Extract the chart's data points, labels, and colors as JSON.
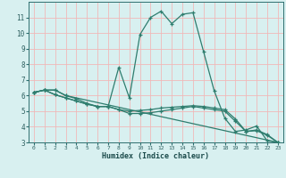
{
  "xlabel": "Humidex (Indice chaleur)",
  "bg_color": "#d8f0f0",
  "grid_color": "#f0b8b8",
  "line_color": "#2e7d6e",
  "xlim": [
    -0.5,
    23.5
  ],
  "ylim": [
    3,
    12
  ],
  "xticks": [
    0,
    1,
    2,
    3,
    4,
    5,
    6,
    7,
    8,
    9,
    10,
    11,
    12,
    13,
    14,
    15,
    16,
    17,
    18,
    19,
    20,
    21,
    22,
    23
  ],
  "yticks": [
    3,
    4,
    5,
    6,
    7,
    8,
    9,
    10,
    11
  ],
  "series": [
    {
      "x": [
        0,
        1,
        2,
        3,
        4,
        5,
        6,
        7,
        8,
        9,
        10,
        11,
        12,
        13,
        14,
        15,
        16,
        17,
        18,
        19,
        20,
        21,
        22,
        23
      ],
      "y": [
        6.2,
        6.35,
        6.35,
        6.0,
        5.8,
        5.5,
        5.3,
        5.3,
        7.8,
        5.85,
        9.9,
        11.0,
        11.4,
        10.6,
        11.2,
        11.3,
        8.8,
        6.3,
        4.55,
        3.7,
        3.8,
        4.05,
        3.1,
        3.0
      ]
    },
    {
      "x": [
        0,
        1,
        2,
        3,
        4,
        5,
        6,
        7,
        8,
        9,
        10,
        11,
        12,
        13,
        14,
        15,
        16,
        17,
        18,
        19,
        20,
        21,
        22,
        23
      ],
      "y": [
        6.2,
        6.35,
        6.05,
        5.85,
        5.65,
        5.45,
        5.3,
        5.3,
        5.1,
        5.0,
        5.05,
        5.1,
        5.2,
        5.25,
        5.3,
        5.35,
        5.3,
        5.2,
        5.1,
        4.5,
        3.7,
        3.8,
        3.5,
        3.0
      ]
    },
    {
      "x": [
        0,
        1,
        2,
        3,
        4,
        5,
        6,
        7,
        8,
        9,
        10,
        11,
        12,
        13,
        14,
        15,
        16,
        17,
        18,
        19,
        20,
        21,
        22,
        23
      ],
      "y": [
        6.2,
        6.35,
        6.05,
        5.85,
        5.65,
        5.45,
        5.3,
        5.3,
        5.1,
        4.85,
        4.85,
        4.9,
        5.0,
        5.1,
        5.2,
        5.3,
        5.2,
        5.1,
        5.0,
        4.35,
        3.7,
        3.75,
        3.45,
        3.0
      ]
    },
    {
      "x": [
        0,
        1,
        2,
        3,
        23
      ],
      "y": [
        6.2,
        6.35,
        6.35,
        6.0,
        3.0
      ]
    }
  ]
}
